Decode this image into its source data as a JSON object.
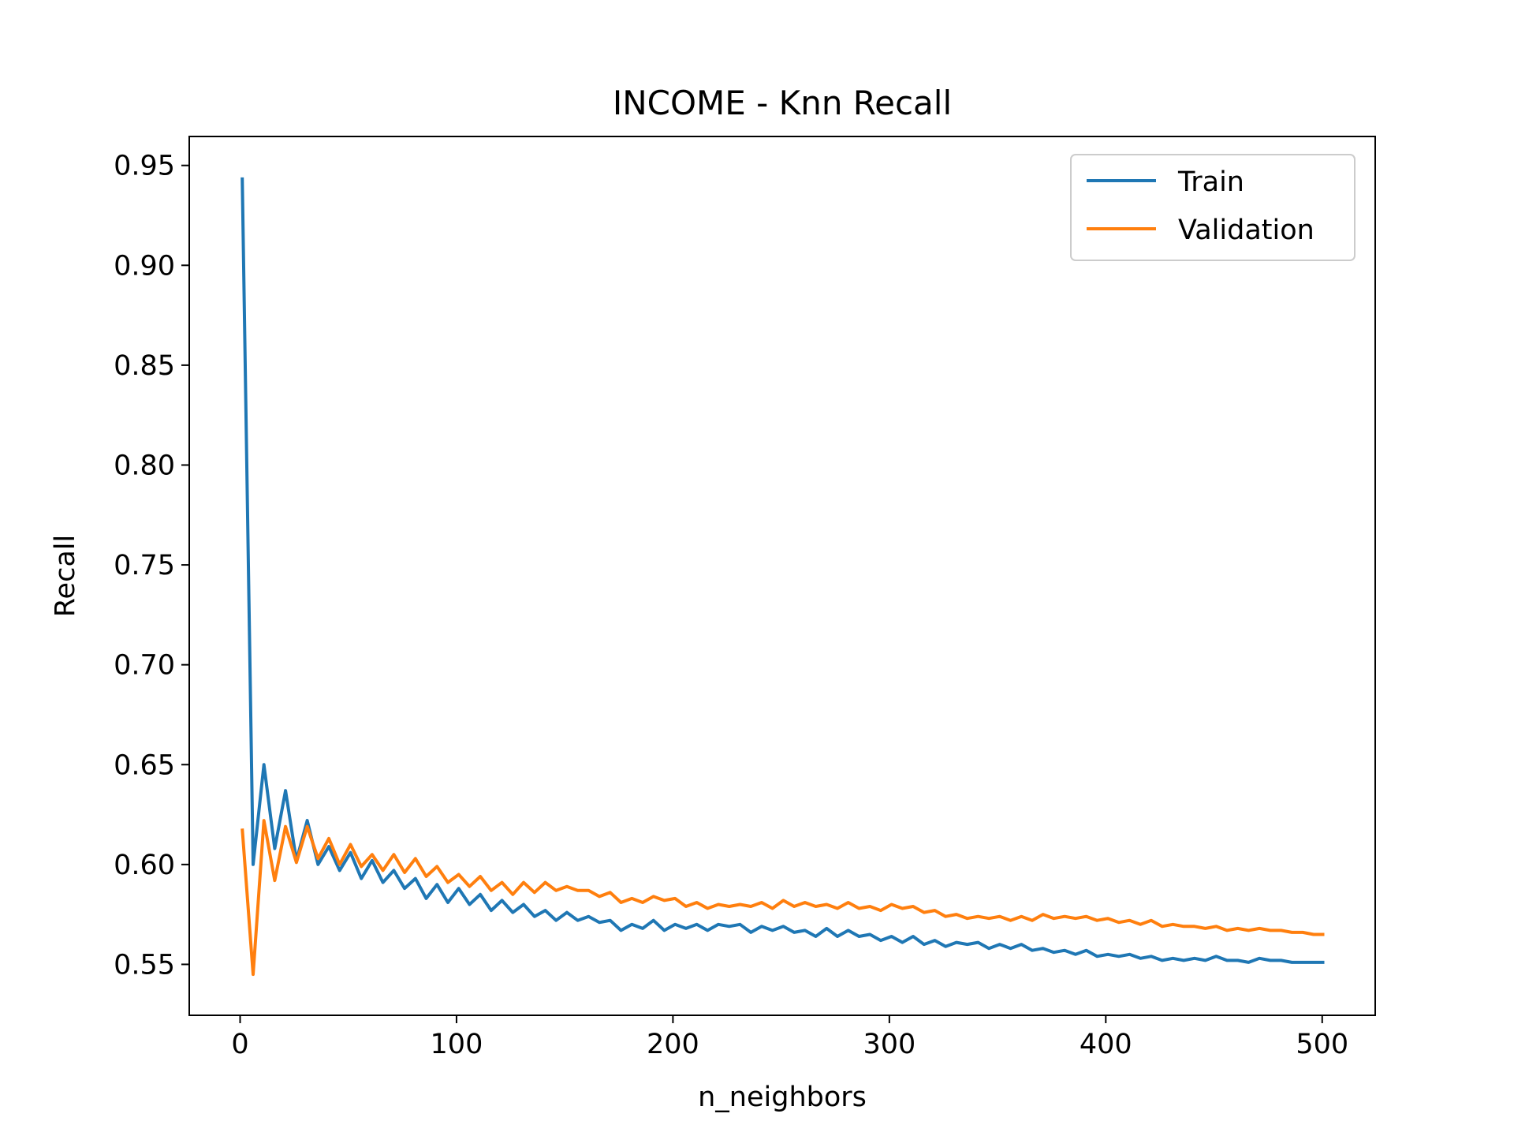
{
  "chart_data": {
    "type": "line",
    "title": "INCOME - Knn Recall",
    "xlabel": "n_neighbors",
    "ylabel": "Recall",
    "xlim": [
      -23.5,
      524.5
    ],
    "ylim": [
      0.5245,
      0.9645
    ],
    "xticks": [
      0,
      100,
      200,
      300,
      400,
      500
    ],
    "xtick_labels": [
      "0",
      "100",
      "200",
      "300",
      "400",
      "500"
    ],
    "yticks": [
      0.55,
      0.6,
      0.65,
      0.7,
      0.75,
      0.8,
      0.85,
      0.9,
      0.95
    ],
    "ytick_labels": [
      "0.55",
      "0.60",
      "0.65",
      "0.70",
      "0.75",
      "0.80",
      "0.85",
      "0.90",
      "0.95"
    ],
    "grid": false,
    "legend_position": "top-right",
    "x": [
      1,
      6,
      11,
      16,
      21,
      26,
      31,
      36,
      41,
      46,
      51,
      56,
      61,
      66,
      71,
      76,
      81,
      86,
      91,
      96,
      101,
      106,
      111,
      116,
      121,
      126,
      131,
      136,
      141,
      146,
      151,
      156,
      161,
      166,
      171,
      176,
      181,
      186,
      191,
      196,
      201,
      206,
      211,
      216,
      221,
      226,
      231,
      236,
      241,
      246,
      251,
      256,
      261,
      266,
      271,
      276,
      281,
      286,
      291,
      296,
      301,
      306,
      311,
      316,
      321,
      326,
      331,
      336,
      341,
      346,
      351,
      356,
      361,
      366,
      371,
      376,
      381,
      386,
      391,
      396,
      401,
      406,
      411,
      416,
      421,
      426,
      431,
      436,
      441,
      446,
      451,
      456,
      461,
      466,
      471,
      476,
      481,
      486,
      491,
      496,
      501
    ],
    "series": [
      {
        "name": "Train",
        "color": "#1f77b4",
        "values": [
          0.944,
          0.6,
          0.65,
          0.608,
          0.637,
          0.602,
          0.622,
          0.6,
          0.609,
          0.597,
          0.606,
          0.593,
          0.602,
          0.591,
          0.597,
          0.588,
          0.593,
          0.583,
          0.59,
          0.581,
          0.588,
          0.58,
          0.585,
          0.577,
          0.582,
          0.576,
          0.58,
          0.574,
          0.577,
          0.572,
          0.576,
          0.572,
          0.574,
          0.571,
          0.572,
          0.567,
          0.57,
          0.568,
          0.572,
          0.567,
          0.57,
          0.568,
          0.57,
          0.567,
          0.57,
          0.569,
          0.57,
          0.566,
          0.569,
          0.567,
          0.569,
          0.566,
          0.567,
          0.564,
          0.568,
          0.564,
          0.567,
          0.564,
          0.565,
          0.562,
          0.564,
          0.561,
          0.564,
          0.56,
          0.562,
          0.559,
          0.561,
          0.56,
          0.561,
          0.558,
          0.56,
          0.558,
          0.56,
          0.557,
          0.558,
          0.556,
          0.557,
          0.555,
          0.557,
          0.554,
          0.555,
          0.554,
          0.555,
          0.553,
          0.554,
          0.552,
          0.553,
          0.552,
          0.553,
          0.552,
          0.554,
          0.552,
          0.552,
          0.551,
          0.553,
          0.552,
          0.552,
          0.551,
          0.551,
          0.551,
          0.551
        ]
      },
      {
        "name": "Validation",
        "color": "#ff7f0e",
        "values": [
          0.618,
          0.545,
          0.622,
          0.592,
          0.619,
          0.601,
          0.619,
          0.603,
          0.613,
          0.6,
          0.61,
          0.599,
          0.605,
          0.597,
          0.605,
          0.596,
          0.603,
          0.594,
          0.599,
          0.591,
          0.595,
          0.589,
          0.594,
          0.587,
          0.591,
          0.585,
          0.591,
          0.586,
          0.591,
          0.587,
          0.589,
          0.587,
          0.587,
          0.584,
          0.586,
          0.581,
          0.583,
          0.581,
          0.584,
          0.582,
          0.583,
          0.579,
          0.581,
          0.578,
          0.58,
          0.579,
          0.58,
          0.579,
          0.581,
          0.578,
          0.582,
          0.579,
          0.581,
          0.579,
          0.58,
          0.578,
          0.581,
          0.578,
          0.579,
          0.577,
          0.58,
          0.578,
          0.579,
          0.576,
          0.577,
          0.574,
          0.575,
          0.573,
          0.574,
          0.573,
          0.574,
          0.572,
          0.574,
          0.572,
          0.575,
          0.573,
          0.574,
          0.573,
          0.574,
          0.572,
          0.573,
          0.571,
          0.572,
          0.57,
          0.572,
          0.569,
          0.57,
          0.569,
          0.569,
          0.568,
          0.569,
          0.567,
          0.568,
          0.567,
          0.568,
          0.567,
          0.567,
          0.566,
          0.566,
          0.565,
          0.565
        ]
      }
    ]
  }
}
